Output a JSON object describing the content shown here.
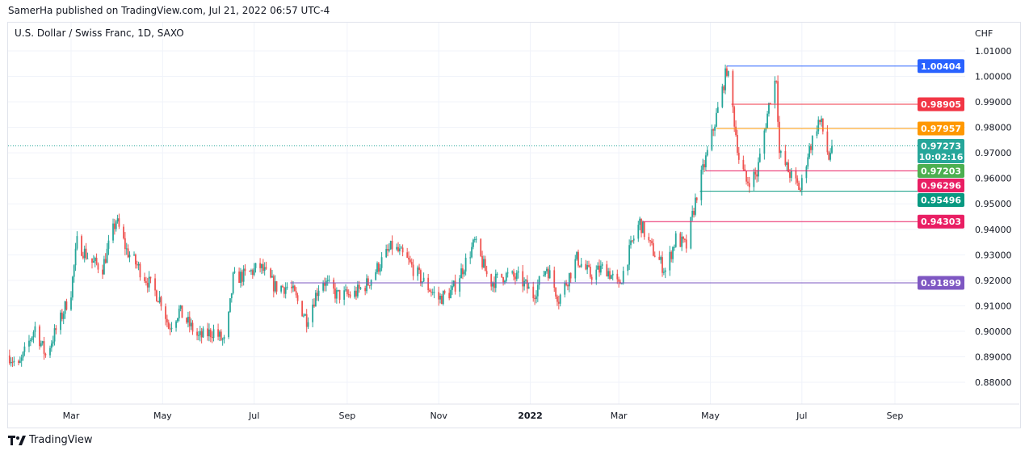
{
  "header": {
    "published": "SamerHa published on TradingView.com, Jul 21, 2022 06:57 UTC-4",
    "symbol": "U.S. Dollar / Swiss Franc, 1D, SAXO"
  },
  "footer": {
    "logo_text": "TradingView"
  },
  "chart_data": {
    "type": "candlestick",
    "title": "U.S. Dollar / Swiss Franc, 1D, SAXO",
    "currency_label": "CHF",
    "ylim": [
      0.875,
      1.0185
    ],
    "y_ticks": [
      "0.88000",
      "0.89000",
      "0.90000",
      "0.91000",
      "0.92000",
      "0.93000",
      "0.94000",
      "0.95000",
      "0.96000",
      "0.97000",
      "0.98000",
      "0.99000",
      "1.00000",
      "1.01000"
    ],
    "x_range": [
      "2021-01-17",
      "2022-10-12"
    ],
    "x_ticks": [
      {
        "label": "Mar",
        "date": "2021-03-01"
      },
      {
        "label": "May",
        "date": "2021-05-01"
      },
      {
        "label": "Jul",
        "date": "2021-07-01"
      },
      {
        "label": "Sep",
        "date": "2021-09-01"
      },
      {
        "label": "Nov",
        "date": "2021-11-01"
      },
      {
        "label": "2022",
        "date": "2022-01-01",
        "bold": true
      },
      {
        "label": "Mar",
        "date": "2022-03-01"
      },
      {
        "label": "May",
        "date": "2022-05-01"
      },
      {
        "label": "Jul",
        "date": "2022-07-01"
      },
      {
        "label": "Sep",
        "date": "2022-09-01"
      }
    ],
    "up_color": "#26a69a",
    "down_color": "#ef5350",
    "grid": true,
    "close_path": [
      [
        "2021-01-19",
        0.8905
      ],
      [
        "2021-01-25",
        0.8857
      ],
      [
        "2021-02-05",
        0.9016
      ],
      [
        "2021-02-12",
        0.8905
      ],
      [
        "2021-02-22",
        0.9047
      ],
      [
        "2021-03-01",
        0.9158
      ],
      [
        "2021-03-05",
        0.9349
      ],
      [
        "2021-03-15",
        0.927
      ],
      [
        "2021-03-22",
        0.925
      ],
      [
        "2021-03-31",
        0.9437
      ],
      [
        "2021-04-07",
        0.9317
      ],
      [
        "2021-04-20",
        0.9206
      ],
      [
        "2021-05-01",
        0.9111
      ],
      [
        "2021-05-05",
        0.9016
      ],
      [
        "2021-05-12",
        0.908
      ],
      [
        "2021-05-25",
        0.8975
      ],
      [
        "2021-06-04",
        0.9
      ],
      [
        "2021-06-12",
        0.8952
      ],
      [
        "2021-06-17",
        0.9206
      ],
      [
        "2021-06-25",
        0.922
      ],
      [
        "2021-07-05",
        0.9253
      ],
      [
        "2021-07-15",
        0.9174
      ],
      [
        "2021-07-25",
        0.9174
      ],
      [
        "2021-08-05",
        0.9047
      ],
      [
        "2021-08-15",
        0.9206
      ],
      [
        "2021-08-25",
        0.9142
      ],
      [
        "2021-09-05",
        0.9142
      ],
      [
        "2021-09-15",
        0.919
      ],
      [
        "2021-09-25",
        0.9285
      ],
      [
        "2021-10-01",
        0.9333
      ],
      [
        "2021-10-10",
        0.9285
      ],
      [
        "2021-10-20",
        0.9206
      ],
      [
        "2021-11-01",
        0.9127
      ],
      [
        "2021-11-10",
        0.9158
      ],
      [
        "2021-11-20",
        0.9285
      ],
      [
        "2021-11-25",
        0.9349
      ],
      [
        "2021-12-05",
        0.919
      ],
      [
        "2021-12-15",
        0.922
      ],
      [
        "2021-12-25",
        0.9206
      ],
      [
        "2022-01-03",
        0.9142
      ],
      [
        "2022-01-12",
        0.9253
      ],
      [
        "2022-01-20",
        0.9127
      ],
      [
        "2022-02-01",
        0.9285
      ],
      [
        "2022-02-10",
        0.922
      ],
      [
        "2022-02-20",
        0.9253
      ],
      [
        "2022-03-01",
        0.9174
      ],
      [
        "2022-03-10",
        0.9349
      ],
      [
        "2022-03-15",
        0.9428
      ],
      [
        "2022-03-22",
        0.9333
      ],
      [
        "2022-04-01",
        0.9238
      ],
      [
        "2022-04-08",
        0.9364
      ],
      [
        "2022-04-15",
        0.9333
      ],
      [
        "2022-04-22",
        0.9539
      ],
      [
        "2022-05-01",
        0.9745
      ],
      [
        "2022-05-08",
        0.9919
      ],
      [
        "2022-05-12",
        1.003
      ],
      [
        "2022-05-15",
        0.9919
      ],
      [
        "2022-05-20",
        0.968
      ],
      [
        "2022-05-25",
        0.9586
      ],
      [
        "2022-06-01",
        0.9618
      ],
      [
        "2022-06-10",
        0.9919
      ],
      [
        "2022-06-14",
        0.9999
      ],
      [
        "2022-06-16",
        0.9697
      ],
      [
        "2022-06-23",
        0.9618
      ],
      [
        "2022-06-30",
        0.9555
      ],
      [
        "2022-07-05",
        0.9697
      ],
      [
        "2022-07-12",
        0.9824
      ],
      [
        "2022-07-14",
        0.981
      ],
      [
        "2022-07-19",
        0.968
      ],
      [
        "2022-07-21",
        0.97273
      ]
    ],
    "levels": [
      {
        "price": "1.00404",
        "color": "#2962ff",
        "from": "2022-05-12"
      },
      {
        "price": "0.98905",
        "color": "#f23645",
        "from": "2022-05-15"
      },
      {
        "price": "0.97957",
        "color": "#ff9800",
        "from": "2022-05-05",
        "text_color": "#131722"
      },
      {
        "price": "0.97203",
        "color": "#4caf50",
        "from": null
      },
      {
        "price": "0.96296",
        "color": "#e91e63",
        "from": "2022-04-28"
      },
      {
        "price": "0.95496",
        "color": "#089981",
        "from": "2022-04-24"
      },
      {
        "price": "0.94303",
        "color": "#e91e63",
        "from": "2022-03-17"
      },
      {
        "price": "0.91899",
        "color": "#7e57c2",
        "from": "2021-07-25"
      }
    ],
    "last_price": {
      "price": "0.97273",
      "countdown": "10:02:16",
      "color": "#26a69a"
    }
  }
}
